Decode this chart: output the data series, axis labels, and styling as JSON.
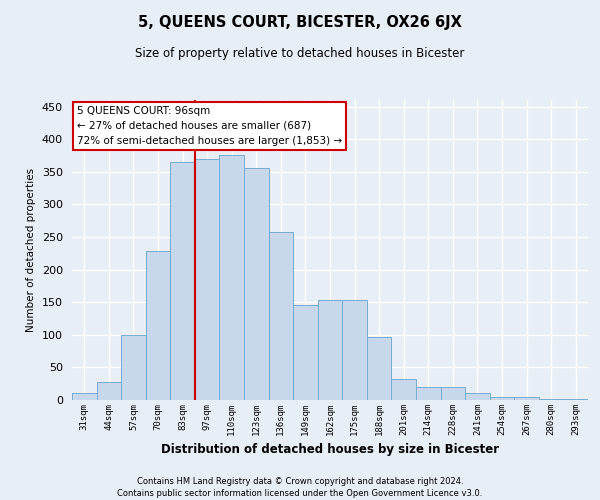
{
  "title": "5, QUEENS COURT, BICESTER, OX26 6JX",
  "subtitle": "Size of property relative to detached houses in Bicester",
  "xlabel": "Distribution of detached houses by size in Bicester",
  "ylabel": "Number of detached properties",
  "bar_labels": [
    "31sqm",
    "44sqm",
    "57sqm",
    "70sqm",
    "83sqm",
    "97sqm",
    "110sqm",
    "123sqm",
    "136sqm",
    "149sqm",
    "162sqm",
    "175sqm",
    "188sqm",
    "201sqm",
    "214sqm",
    "228sqm",
    "241sqm",
    "254sqm",
    "267sqm",
    "280sqm",
    "293sqm"
  ],
  "bar_values": [
    10,
    27,
    100,
    228,
    365,
    370,
    375,
    355,
    258,
    145,
    153,
    153,
    96,
    32,
    20,
    20,
    11,
    5,
    5,
    2,
    1
  ],
  "bar_color": "#c8d8ec",
  "bar_edge_color": "#7aaad0",
  "property_line_x": 5,
  "annotation_text": "5 QUEENS COURT: 96sqm\n← 27% of detached houses are smaller (687)\n72% of semi-detached houses are larger (1,853) →",
  "annotation_box_color": "#ffffff",
  "annotation_box_edge_color": "#cc0000",
  "property_line_color": "#cc0000",
  "ylim": [
    0,
    460
  ],
  "yticks": [
    0,
    50,
    100,
    150,
    200,
    250,
    300,
    350,
    400,
    450
  ],
  "background_color": "#e8eef5",
  "grid_color": "#ffffff",
  "footer1": "Contains HM Land Registry data © Crown copyright and database right 2024.",
  "footer2": "Contains public sector information licensed under the Open Government Licence v3.0."
}
